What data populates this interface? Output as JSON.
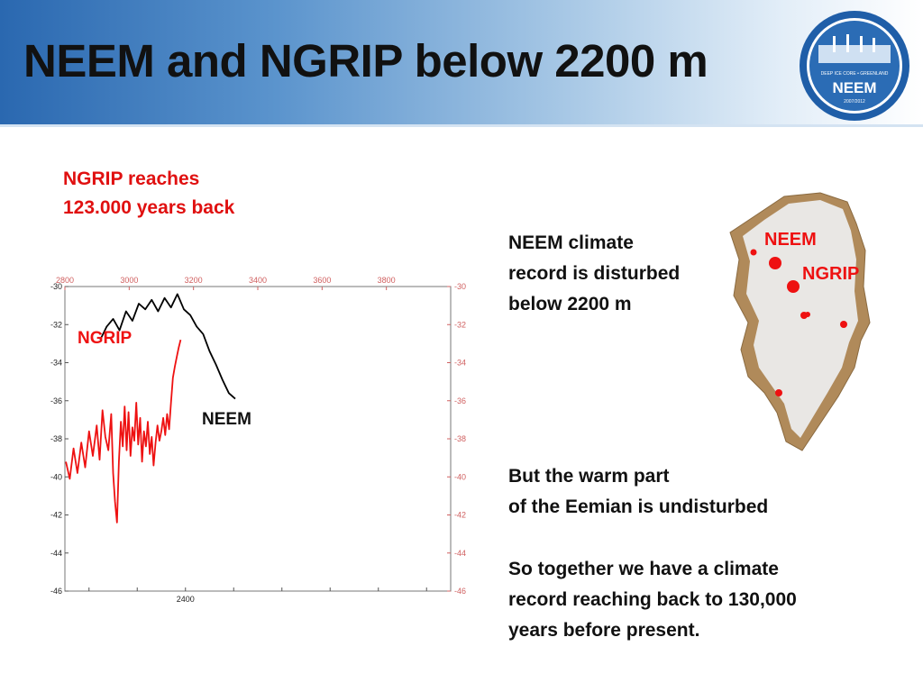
{
  "title": "NEEM and NGRIP below 2200 m",
  "logo": {
    "lines": [
      "DEEP ICE CORE • GREENLAND",
      "NEEM",
      "2007/2012"
    ]
  },
  "note_ngrip": [
    "NGRIP reaches",
    "123.000 years back"
  ],
  "text_blocks": {
    "disturbed": [
      "NEEM climate",
      "record is disturbed",
      "below 2200 m"
    ],
    "undisturbed": [
      "But the warm part",
      "of the Eemian is undisturbed"
    ],
    "conclusion": [
      "So together we have a climate",
      "record reaching back to 130,000",
      "years before present."
    ]
  },
  "map": {
    "labels": [
      "NEEM",
      "NGRIP"
    ]
  },
  "colors": {
    "ngrip": "#ee1111",
    "neem": "#000000",
    "title": "#111111",
    "note": "#e01010",
    "axis_red": "#d06060"
  },
  "chart_data": {
    "type": "line",
    "title": "",
    "top_axis": {
      "label": "",
      "ticks": [
        2800,
        3000,
        3200,
        3400,
        3600,
        3800
      ],
      "range": [
        2800,
        4000
      ]
    },
    "bottom_axis": {
      "label": "",
      "ticks": [
        2400
      ],
      "range": [
        2150,
        2950
      ]
    },
    "left_axis": {
      "ticks": [
        -30,
        -32,
        -34,
        -36,
        -38,
        -40,
        -42,
        -44,
        -46
      ],
      "range": [
        -46,
        -30
      ]
    },
    "right_axis": {
      "ticks": [
        -30,
        -32,
        -34,
        -36,
        -38,
        -40,
        -42,
        -44,
        -46
      ],
      "range": [
        -46,
        -30
      ]
    },
    "grid": false,
    "series": [
      {
        "name": "NGRIP",
        "color": "#ee1111",
        "axis": "bottom",
        "x": [
          2152,
          2160,
          2168,
          2176,
          2184,
          2192,
          2200,
          2208,
          2216,
          2222,
          2228,
          2234,
          2240,
          2246,
          2250,
          2254,
          2258,
          2262,
          2266,
          2270,
          2274,
          2278,
          2282,
          2286,
          2290,
          2294,
          2298,
          2302,
          2306,
          2310,
          2314,
          2318,
          2322,
          2326,
          2330,
          2334,
          2338,
          2342,
          2346,
          2350,
          2354,
          2358,
          2362,
          2366,
          2370,
          2374,
          2378,
          2382,
          2386,
          2390
        ],
        "values": [
          -39.2,
          -40.1,
          -38.5,
          -39.8,
          -38.2,
          -39.5,
          -37.6,
          -38.9,
          -37.3,
          -39.1,
          -36.5,
          -37.9,
          -38.6,
          -36.7,
          -39.8,
          -41.3,
          -42.4,
          -39.2,
          -37.1,
          -38.4,
          -36.3,
          -38.6,
          -36.6,
          -38.9,
          -37.4,
          -38.1,
          -36.1,
          -38.3,
          -36.9,
          -39.2,
          -37.6,
          -38.4,
          -37.1,
          -38.8,
          -37.9,
          -39.4,
          -38.2,
          -37.3,
          -38.1,
          -37.6,
          -36.9,
          -37.8,
          -36.7,
          -37.5,
          -36.1,
          -34.8,
          -34.2,
          -33.7,
          -33.2,
          -32.8
        ]
      },
      {
        "name": "NEEM",
        "color": "#000000",
        "axis": "top",
        "x": [
          2910,
          2930,
          2950,
          2970,
          2990,
          3010,
          3030,
          3050,
          3070,
          3090,
          3110,
          3130,
          3150,
          3170,
          3190,
          3210,
          3230,
          3250,
          3270,
          3290,
          3310,
          3330
        ],
        "values": [
          -32.8,
          -32.1,
          -31.7,
          -32.3,
          -31.3,
          -31.8,
          -30.9,
          -31.2,
          -30.7,
          -31.3,
          -30.6,
          -31.1,
          -30.4,
          -31.2,
          -31.5,
          -32.1,
          -32.5,
          -33.4,
          -34.1,
          -34.9,
          -35.6,
          -35.9
        ]
      }
    ],
    "annotations": [
      "NGRIP",
      "NEEM"
    ]
  }
}
